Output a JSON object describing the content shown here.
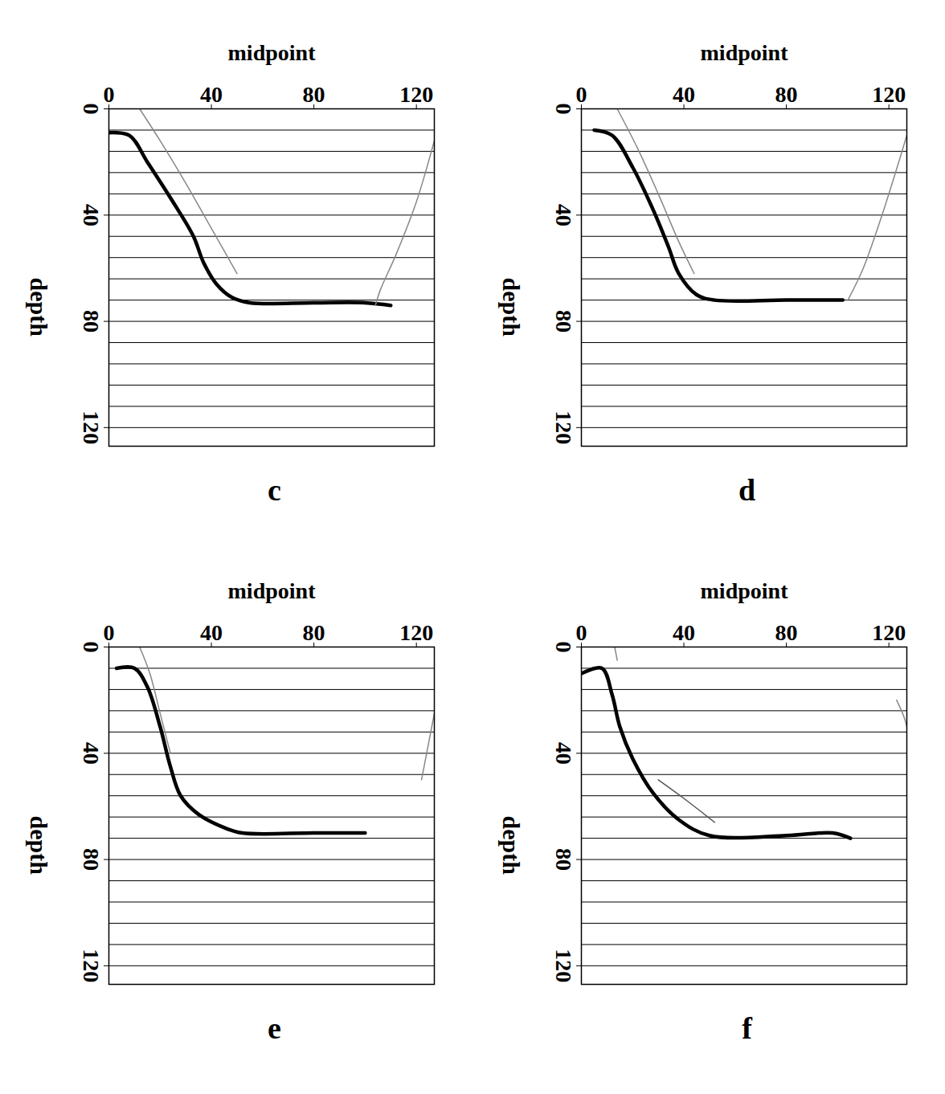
{
  "chart_data": [
    {
      "type": "line",
      "title": "c",
      "x_label": "midpoint",
      "y_label": "depth",
      "xlim": [
        0,
        127
      ],
      "ylim": [
        0,
        127
      ],
      "xticks": [
        0,
        40,
        80,
        120
      ],
      "yticks": [
        0,
        40,
        80,
        120
      ],
      "grid": true,
      "grid_lines": [
        8,
        16,
        24,
        32,
        40,
        48,
        56,
        64,
        72,
        80,
        88,
        96,
        104,
        112,
        120
      ],
      "series": [
        {
          "color": "#000000",
          "x": [
            0,
            8,
            15,
            25,
            33,
            37,
            42,
            48,
            55,
            80,
            100,
            110
          ],
          "values": [
            9,
            10,
            20,
            35,
            48,
            58,
            66,
            71,
            73,
            73,
            73,
            74
          ]
        },
        {
          "color": "#888888",
          "x": [
            12,
            20,
            30,
            40,
            50
          ],
          "values": [
            0,
            12,
            28,
            45,
            62
          ]
        },
        {
          "color": "#888888",
          "x": [
            127,
            120,
            112,
            106,
            104
          ],
          "values": [
            12,
            35,
            55,
            68,
            74
          ]
        }
      ]
    },
    {
      "type": "line",
      "title": "d",
      "x_label": "midpoint",
      "y_label": "depth",
      "xlim": [
        0,
        127
      ],
      "ylim": [
        0,
        127
      ],
      "xticks": [
        0,
        40,
        80,
        120
      ],
      "yticks": [
        0,
        40,
        80,
        120
      ],
      "grid": true,
      "grid_lines": [
        8,
        16,
        24,
        32,
        40,
        48,
        56,
        64,
        72,
        80,
        88,
        96,
        104,
        112,
        120
      ],
      "series": [
        {
          "color": "#000000",
          "x": [
            5,
            12,
            20,
            28,
            34,
            38,
            45,
            52,
            80,
            102
          ],
          "values": [
            8,
            10,
            22,
            38,
            52,
            62,
            70,
            72,
            72,
            72
          ]
        },
        {
          "color": "#888888",
          "x": [
            14,
            22,
            30,
            38,
            44
          ],
          "values": [
            0,
            15,
            32,
            50,
            62
          ]
        },
        {
          "color": "#888888",
          "x": [
            127,
            118,
            110,
            104
          ],
          "values": [
            10,
            38,
            60,
            72
          ]
        }
      ]
    },
    {
      "type": "line",
      "title": "e",
      "x_label": "midpoint",
      "y_label": "depth",
      "xlim": [
        0,
        127
      ],
      "ylim": [
        0,
        127
      ],
      "xticks": [
        0,
        40,
        80,
        120
      ],
      "yticks": [
        0,
        40,
        80,
        120
      ],
      "grid": true,
      "grid_lines": [
        8,
        16,
        24,
        32,
        40,
        48,
        56,
        64,
        72,
        80,
        88,
        96,
        104,
        112,
        120
      ],
      "series": [
        {
          "color": "#000000",
          "x": [
            3,
            10,
            15,
            20,
            24,
            28,
            35,
            45,
            52,
            80,
            100
          ],
          "values": [
            8,
            8,
            15,
            30,
            45,
            56,
            63,
            68,
            70,
            70,
            70
          ]
        },
        {
          "color": "#888888",
          "x": [
            12,
            16,
            20,
            24
          ],
          "values": [
            0,
            10,
            25,
            40
          ]
        },
        {
          "color": "#888888",
          "x": [
            127,
            124,
            122
          ],
          "values": [
            25,
            40,
            50
          ]
        }
      ]
    },
    {
      "type": "line",
      "title": "f",
      "x_label": "midpoint",
      "y_label": "depth",
      "xlim": [
        0,
        127
      ],
      "ylim": [
        0,
        127
      ],
      "xticks": [
        0,
        40,
        80,
        120
      ],
      "yticks": [
        0,
        40,
        80,
        120
      ],
      "grid": true,
      "grid_lines": [
        8,
        16,
        24,
        32,
        40,
        48,
        56,
        64,
        72,
        80,
        88,
        96,
        104,
        112,
        120
      ],
      "series": [
        {
          "color": "#000000",
          "x": [
            0,
            8,
            12,
            15,
            20,
            28,
            38,
            50,
            80,
            98,
            105
          ],
          "values": [
            10,
            8,
            18,
            30,
            42,
            55,
            65,
            71,
            71,
            70,
            72
          ]
        },
        {
          "color": "#888888",
          "x": [
            13,
            14
          ],
          "values": [
            0,
            5
          ]
        },
        {
          "color": "#555555",
          "x": [
            30,
            40,
            52
          ],
          "values": [
            50,
            57,
            66
          ]
        },
        {
          "color": "#888888",
          "x": [
            123,
            127,
            127
          ],
          "values": [
            20,
            30,
            42
          ]
        }
      ]
    }
  ]
}
